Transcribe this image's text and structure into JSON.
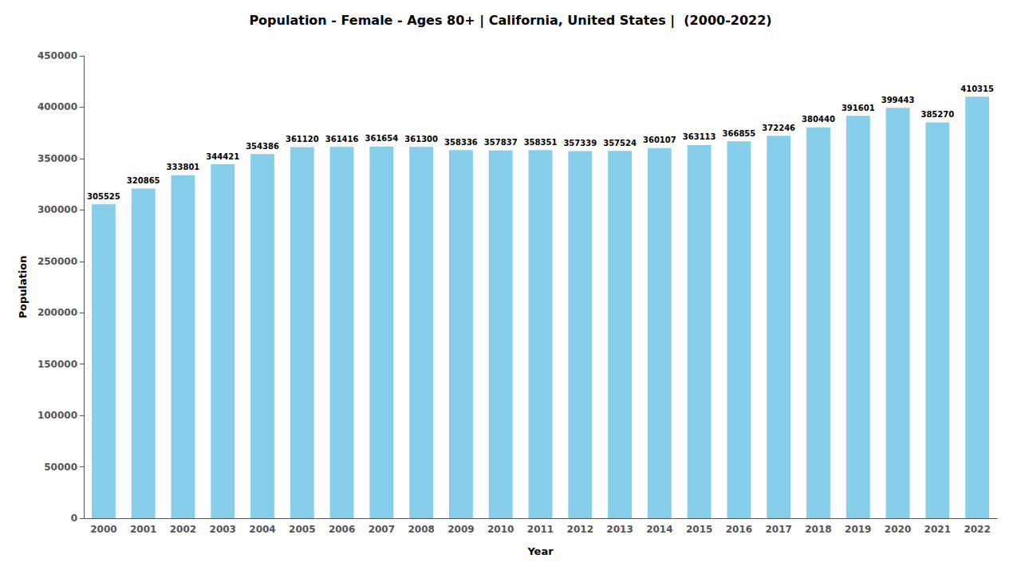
{
  "chart_data": {
    "type": "bar",
    "title": "Population - Female - Ages 80+ | California, United States |  (2000-2022)",
    "xlabel": "Year",
    "ylabel": "Population",
    "categories": [
      "2000",
      "2001",
      "2002",
      "2003",
      "2004",
      "2005",
      "2006",
      "2007",
      "2008",
      "2009",
      "2010",
      "2011",
      "2012",
      "2013",
      "2014",
      "2015",
      "2016",
      "2017",
      "2018",
      "2019",
      "2020",
      "2021",
      "2022"
    ],
    "values": [
      305525,
      320865,
      333801,
      344421,
      354386,
      361120,
      361416,
      361654,
      361300,
      358336,
      357837,
      358351,
      357339,
      357524,
      360107,
      363113,
      366855,
      372246,
      380440,
      391601,
      399443,
      385270,
      410315
    ],
    "color": "#87CEEB",
    "ylim": [
      0,
      450000
    ],
    "yticks": [
      0,
      50000,
      100000,
      150000,
      200000,
      250000,
      300000,
      350000,
      400000,
      450000
    ],
    "grid": false,
    "data_labels": true
  }
}
